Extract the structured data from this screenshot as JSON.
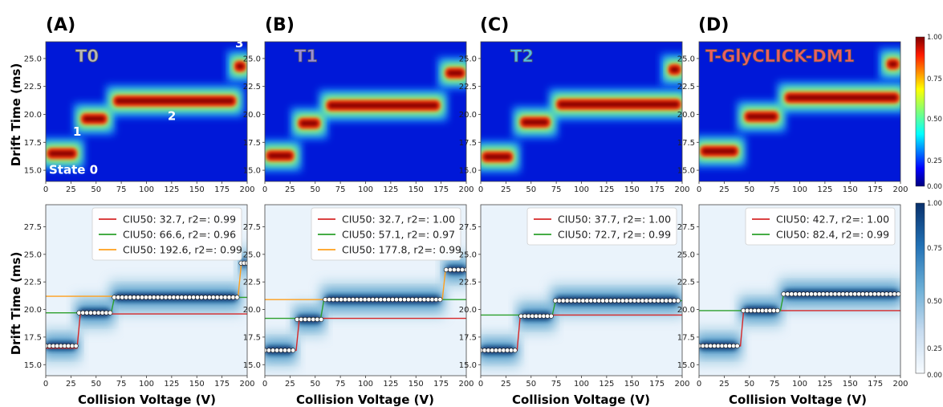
{
  "figure": {
    "y_axis_label": "Drift Time (ms)",
    "x_axis_label": "Collision Voltage (V)",
    "colorbar_ticks": [
      "0.00",
      "0.25",
      "0.50",
      "0.75",
      "1.00"
    ],
    "top_row_colormap": "jet",
    "bottom_row_colormap": "blues",
    "state_labels": [
      "State 0",
      "1",
      "2",
      "3"
    ]
  },
  "chart_data": [
    {
      "panel": "(A)",
      "title": "T0",
      "title_color": "#b7b7b7",
      "type": "heatmap",
      "xlim": [
        0,
        200
      ],
      "ylim": [
        14,
        26.5
      ],
      "x_ticks": [
        "0",
        "25",
        "50",
        "75",
        "100",
        "125",
        "150",
        "175",
        "200"
      ],
      "y_ticks": [
        "15.0",
        "17.5",
        "20.0",
        "22.5",
        "25.0"
      ],
      "features": [
        {
          "state": "State 0",
          "x": [
            0,
            32
          ],
          "drift_time": 16.5
        },
        {
          "state": "1",
          "x": [
            34,
            62
          ],
          "drift_time": 19.6
        },
        {
          "state": "2",
          "x": [
            66,
            190
          ],
          "drift_time": 21.2
        },
        {
          "state": "3",
          "x": [
            186,
            200
          ],
          "drift_time": 24.3
        }
      ]
    },
    {
      "panel": "(B)",
      "title": "T1",
      "title_color": "#9c8fd6",
      "type": "heatmap",
      "xlim": [
        0,
        200
      ],
      "ylim": [
        14,
        26.5
      ],
      "x_ticks": [
        "0",
        "25",
        "50",
        "75",
        "100",
        "125",
        "150",
        "175",
        "200"
      ],
      "y_ticks": [
        "15.0",
        "17.5",
        "20.0",
        "22.5",
        "25.0"
      ],
      "features": [
        {
          "x": [
            0,
            30
          ],
          "drift_time": 16.3
        },
        {
          "x": [
            32,
            56
          ],
          "drift_time": 19.2
        },
        {
          "x": [
            60,
            175
          ],
          "drift_time": 20.8
        },
        {
          "x": [
            178,
            200
          ],
          "drift_time": 23.7
        }
      ]
    },
    {
      "panel": "(C)",
      "title": "T2",
      "title_color": "#53bde6",
      "type": "heatmap",
      "xlim": [
        0,
        200
      ],
      "ylim": [
        14,
        26.5
      ],
      "x_ticks": [
        "0",
        "25",
        "50",
        "75",
        "100",
        "125",
        "150",
        "175",
        "200"
      ],
      "y_ticks": [
        "15.0",
        "17.5",
        "20.0",
        "22.5",
        "25.0"
      ],
      "features": [
        {
          "x": [
            0,
            33
          ],
          "drift_time": 16.2
        },
        {
          "x": [
            38,
            70
          ],
          "drift_time": 19.3
        },
        {
          "x": [
            74,
            200
          ],
          "drift_time": 20.9
        },
        {
          "x": [
            185,
            200
          ],
          "drift_time": 24.0
        }
      ]
    },
    {
      "panel": "(D)",
      "title": "T-GlyCLICK-DM1",
      "title_color": "#ee5f5f",
      "type": "heatmap",
      "xlim": [
        0,
        200
      ],
      "ylim": [
        14,
        26.5
      ],
      "x_ticks": [
        "0",
        "25",
        "50",
        "75",
        "100",
        "125",
        "150",
        "175",
        "200"
      ],
      "y_ticks": [
        "15.0",
        "17.5",
        "20.0",
        "22.5",
        "25.0"
      ],
      "features": [
        {
          "x": [
            0,
            40
          ],
          "drift_time": 16.7
        },
        {
          "x": [
            44,
            80
          ],
          "drift_time": 19.8
        },
        {
          "x": [
            84,
            200
          ],
          "drift_time": 21.5
        },
        {
          "x": [
            185,
            200
          ],
          "drift_time": 24.5
        }
      ]
    },
    {
      "panel": "(A)",
      "type": "line",
      "xlim": [
        0,
        200
      ],
      "ylim": [
        14,
        29.5
      ],
      "x_ticks": [
        "0",
        "25",
        "50",
        "75",
        "100",
        "125",
        "150",
        "175",
        "200"
      ],
      "y_ticks": [
        "15.0",
        "17.5",
        "20.0",
        "22.5",
        "25.0",
        "27.5"
      ],
      "fits": [
        {
          "label": "CIU50: 32.7, r2=: 0.99",
          "color": "#d62728",
          "x": [
            0,
            32.7,
            200
          ],
          "low": 16.5,
          "high": 19.6
        },
        {
          "label": "CIU50: 66.6, r2=: 0.96",
          "color": "#2ca02c",
          "x": [
            0,
            66.6,
            200
          ],
          "low": 19.7,
          "high": 21.1
        },
        {
          "label": "CIU50: 192.6, r2=: 0.99",
          "color": "#ff9f1c",
          "x": [
            0,
            192.6,
            200
          ],
          "low": 21.2,
          "high": 24.2
        }
      ],
      "centroids": [
        {
          "x": [
            0,
            30
          ],
          "drift_time": 16.7
        },
        {
          "x": [
            33,
            64
          ],
          "drift_time": 19.7
        },
        {
          "x": [
            68,
            190
          ],
          "drift_time": 21.1
        },
        {
          "x": [
            194,
            200
          ],
          "drift_time": 24.2
        }
      ]
    },
    {
      "panel": "(B)",
      "type": "line",
      "xlim": [
        0,
        200
      ],
      "ylim": [
        14,
        29.5
      ],
      "x_ticks": [
        "0",
        "25",
        "50",
        "75",
        "100",
        "125",
        "150",
        "175",
        "200"
      ],
      "y_ticks": [
        "15.0",
        "17.5",
        "20.0",
        "22.5",
        "25.0",
        "27.5"
      ],
      "fits": [
        {
          "label": "CIU50: 32.7, r2=: 1.00",
          "color": "#d62728",
          "x": [
            0,
            32.7,
            200
          ],
          "low": 16.3,
          "high": 19.2
        },
        {
          "label": "CIU50: 57.1, r2=: 0.97",
          "color": "#2ca02c",
          "x": [
            0,
            57.1,
            200
          ],
          "low": 19.2,
          "high": 20.9
        },
        {
          "label": "CIU50: 177.8, r2=: 0.99",
          "color": "#ff9f1c",
          "x": [
            0,
            177.8,
            200
          ],
          "low": 20.9,
          "high": 23.6
        }
      ],
      "centroids": [
        {
          "x": [
            0,
            28
          ],
          "drift_time": 16.3
        },
        {
          "x": [
            32,
            56
          ],
          "drift_time": 19.1
        },
        {
          "x": [
            60,
            174
          ],
          "drift_time": 20.9
        },
        {
          "x": [
            180,
            200
          ],
          "drift_time": 23.6
        }
      ]
    },
    {
      "panel": "(C)",
      "type": "line",
      "xlim": [
        0,
        200
      ],
      "ylim": [
        14,
        29.5
      ],
      "x_ticks": [
        "0",
        "25",
        "50",
        "75",
        "100",
        "125",
        "150",
        "175",
        "200"
      ],
      "y_ticks": [
        "15.0",
        "17.5",
        "20.0",
        "22.5",
        "25.0",
        "27.5"
      ],
      "fits": [
        {
          "label": "CIU50: 37.7, r2=: 1.00",
          "color": "#d62728",
          "x": [
            0,
            37.7,
            200
          ],
          "low": 16.3,
          "high": 19.5
        },
        {
          "label": "CIU50: 72.7, r2=: 0.99",
          "color": "#2ca02c",
          "x": [
            0,
            72.7,
            200
          ],
          "low": 19.5,
          "high": 20.8
        }
      ],
      "centroids": [
        {
          "x": [
            0,
            34
          ],
          "drift_time": 16.3
        },
        {
          "x": [
            40,
            70
          ],
          "drift_time": 19.4
        },
        {
          "x": [
            74,
            196
          ],
          "drift_time": 20.8
        }
      ]
    },
    {
      "panel": "(D)",
      "type": "line",
      "xlim": [
        0,
        200
      ],
      "ylim": [
        14,
        29.5
      ],
      "x_ticks": [
        "0",
        "25",
        "50",
        "75",
        "100",
        "125",
        "150",
        "175",
        "200"
      ],
      "y_ticks": [
        "15.0",
        "17.5",
        "20.0",
        "22.5",
        "25.0",
        "27.5"
      ],
      "fits": [
        {
          "label": "CIU50: 42.7, r2=: 1.00",
          "color": "#d62728",
          "x": [
            0,
            42.7,
            200
          ],
          "low": 16.7,
          "high": 19.9
        },
        {
          "label": "CIU50: 82.4, r2=: 0.99",
          "color": "#2ca02c",
          "x": [
            0,
            82.4,
            200
          ],
          "low": 19.9,
          "high": 21.4
        }
      ],
      "centroids": [
        {
          "x": [
            0,
            38
          ],
          "drift_time": 16.7
        },
        {
          "x": [
            44,
            78
          ],
          "drift_time": 19.9
        },
        {
          "x": [
            84,
            198
          ],
          "drift_time": 21.4
        }
      ]
    }
  ]
}
